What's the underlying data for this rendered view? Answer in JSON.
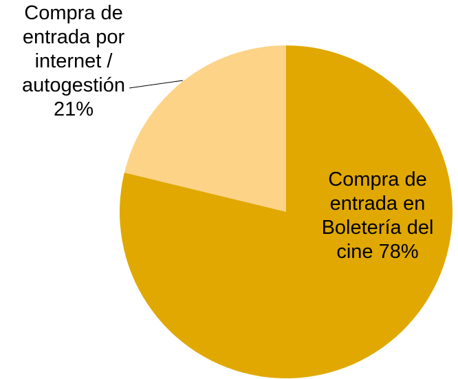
{
  "chart_data": {
    "type": "pie",
    "categories": [
      "Compra de entrada en Boletería del cine",
      "Compra de entrada por internet / autogestión"
    ],
    "values": [
      78,
      21
    ],
    "value_labels": [
      "78%",
      "21%"
    ],
    "colors": [
      "#e0a800",
      "#fdd388"
    ]
  }
}
